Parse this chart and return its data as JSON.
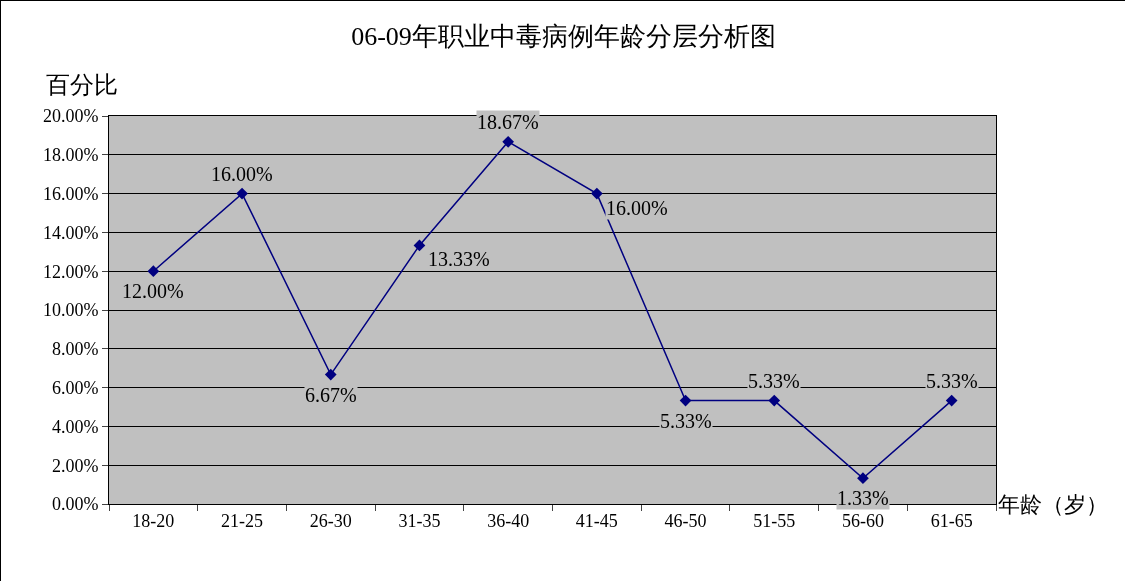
{
  "chart_data": {
    "type": "line",
    "title": "06-09年职业中毒病例年龄分层分析图",
    "ylabel": "百分比",
    "xlabel": "年龄（岁）",
    "categories": [
      "18-20",
      "21-25",
      "26-30",
      "31-35",
      "36-40",
      "41-45",
      "46-50",
      "51-55",
      "56-60",
      "61-65"
    ],
    "series": [
      {
        "color": "#000080",
        "values": [
          12,
          16,
          6.67,
          13.33,
          18.67,
          16,
          5.33,
          5.33,
          1.33,
          5.33
        ],
        "value_labels": [
          "12.00%",
          "16.00%",
          "6.67%",
          "13.33%",
          "18.67%",
          "16.00%",
          "5.33%",
          "5.33%",
          "1.33%",
          "5.33%"
        ]
      }
    ],
    "ylim": [
      0,
      20
    ],
    "yticks": [
      {
        "value": 0,
        "label": "0.00%"
      },
      {
        "value": 2,
        "label": "2.00%"
      },
      {
        "value": 4,
        "label": "4.00%"
      },
      {
        "value": 6,
        "label": "6.00%"
      },
      {
        "value": 8,
        "label": "8.00%"
      },
      {
        "value": 10,
        "label": "10.00%"
      },
      {
        "value": 12,
        "label": "12.00%"
      },
      {
        "value": 14,
        "label": "14.00%"
      },
      {
        "value": 16,
        "label": "16.00%"
      },
      {
        "value": 18,
        "label": "18.00%"
      },
      {
        "value": 20,
        "label": "20.00%"
      }
    ],
    "grid": "y",
    "legend": false,
    "marker": "diamond",
    "line_style": "solid"
  }
}
